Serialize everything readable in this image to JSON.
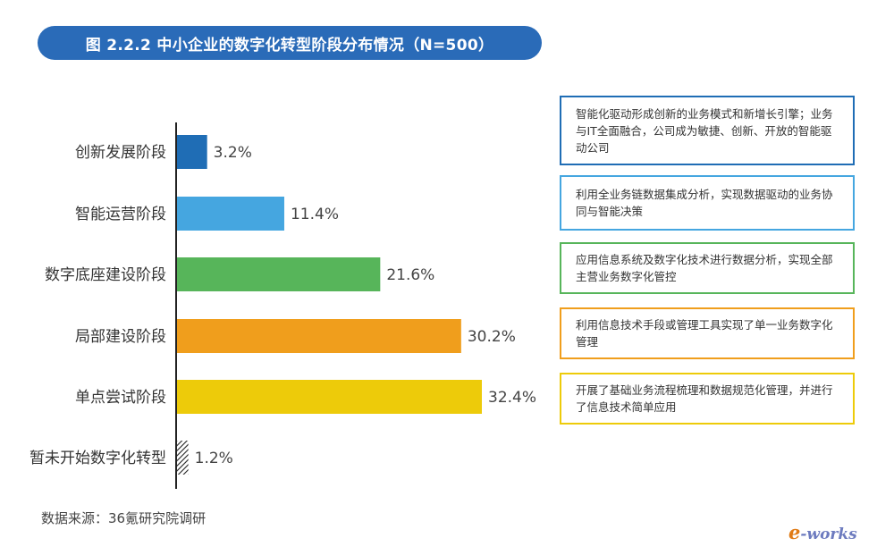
{
  "title": "图 2.2.2 中小企业的数字化转型阶段分布情况（N=500）",
  "colors": {
    "title_bg": "#2a6bb8",
    "bars": [
      "#1f6db5",
      "#45a6e0",
      "#57b55a",
      "#f09e1c",
      "#edcb0a",
      "#222222"
    ]
  },
  "chart_data": {
    "type": "bar",
    "orientation": "horizontal",
    "categories": [
      "创新发展阶段",
      "智能运营阶段",
      "数字底座建设阶段",
      "局部建设阶段",
      "单点尝试阶段",
      "暂未开始数字化转型"
    ],
    "values": [
      3.2,
      11.4,
      21.6,
      30.2,
      32.4,
      1.2
    ],
    "value_labels": [
      "3.2%",
      "11.4%",
      "21.6%",
      "30.2%",
      "32.4%",
      "1.2%"
    ],
    "unit": "%",
    "xlim": [
      0,
      35
    ],
    "grid": false,
    "legend": "none"
  },
  "descriptions": [
    "智能化驱动形成创新的业务模式和新增长引擎；业务与IT全面融合，公司成为敏捷、创新、开放的智能驱动公司",
    "利用全业务链数据集成分析，实现数据驱动的业务协同与智能决策",
    "应用信息系统及数字化技术进行数据分析，实现全部主营业务数字化管控",
    "利用信息技术手段或管理工具实现了单一业务数字化管理",
    "开展了基础业务流程梳理和数据规范化管理，并进行了信息技术简单应用"
  ],
  "description_border_colors": [
    "#1f6db5",
    "#45a6e0",
    "#57b55a",
    "#f09e1c",
    "#edcb0a"
  ],
  "source": "数据来源：36氪研究院调研",
  "logo": {
    "e": "e",
    "rest": "-works"
  }
}
